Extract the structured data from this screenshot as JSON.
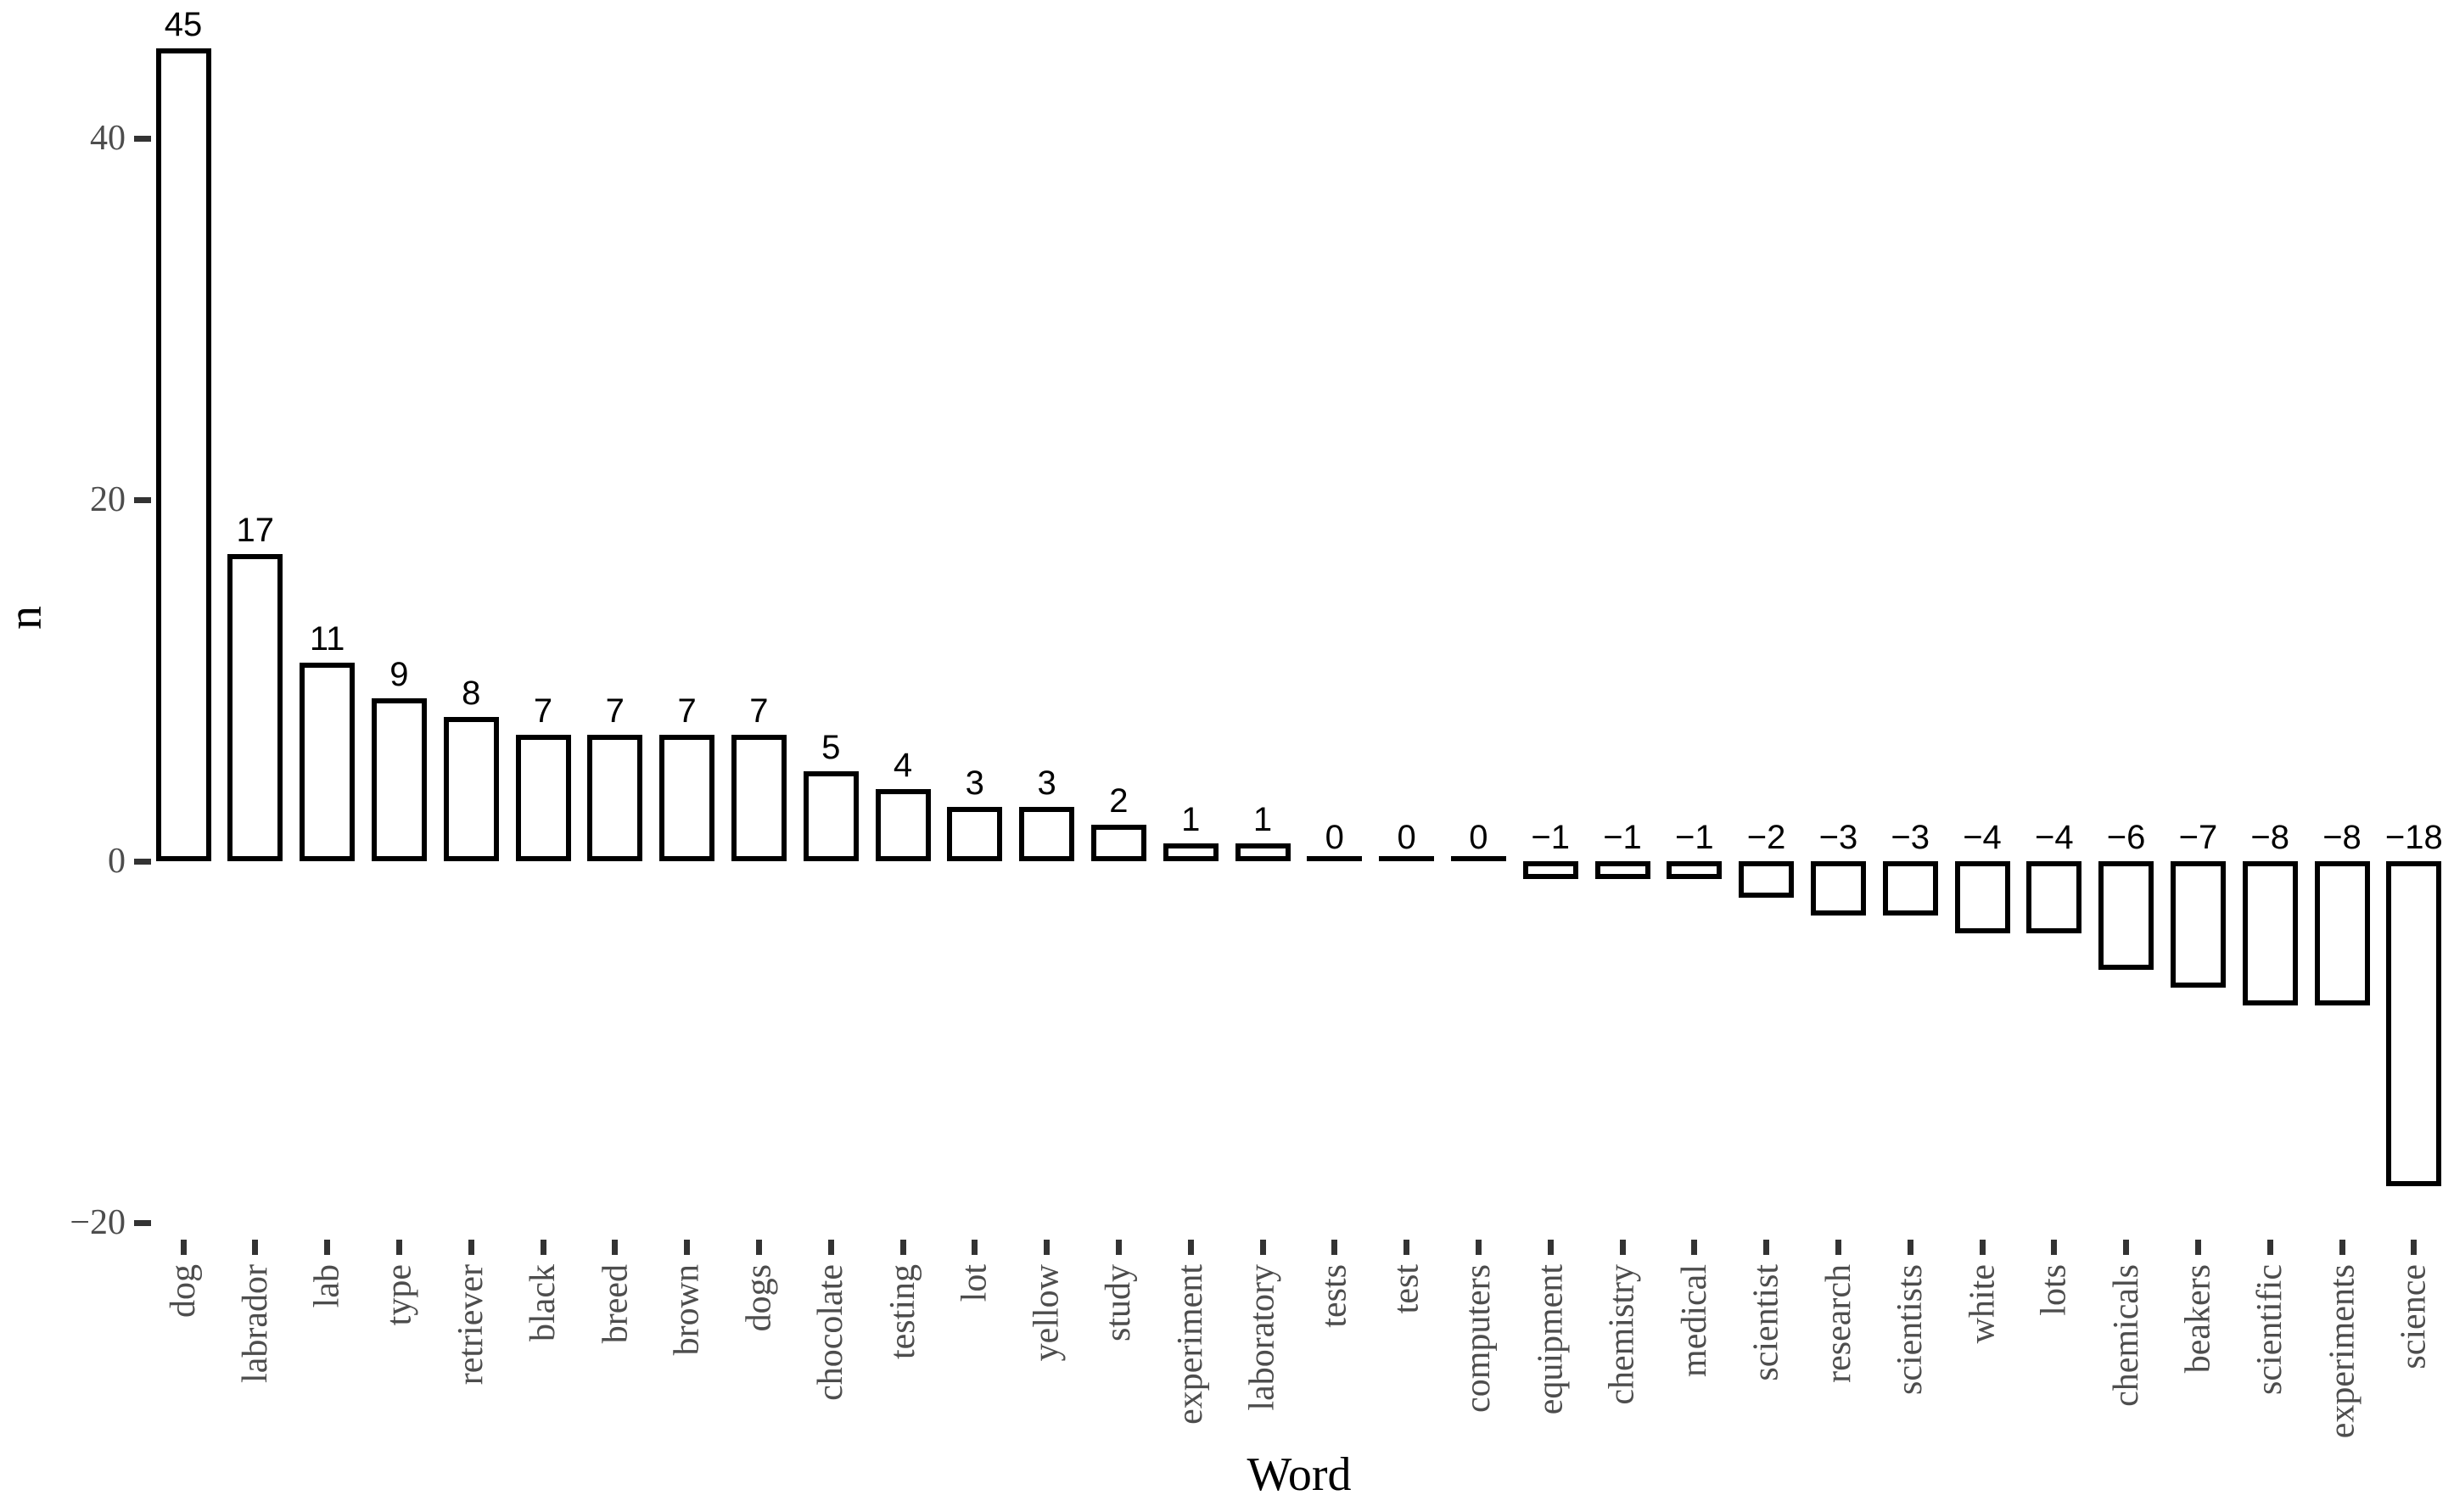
{
  "chart_data": {
    "type": "bar",
    "title": "",
    "xlabel": "Word",
    "ylabel": "n",
    "categories": [
      "dog",
      "labrador",
      "lab",
      "type",
      "retriever",
      "black",
      "breed",
      "brown",
      "dogs",
      "chocolate",
      "testing",
      "lot",
      "yellow",
      "study",
      "experiment",
      "laboratory",
      "tests",
      "test",
      "computers",
      "equipment",
      "chemistry",
      "medical",
      "scientist",
      "research",
      "scientists",
      "white",
      "lots",
      "chemicals",
      "beakers",
      "scientific",
      "experiments",
      "science"
    ],
    "values": [
      45,
      17,
      11,
      9,
      8,
      7,
      7,
      7,
      7,
      5,
      4,
      3,
      3,
      2,
      1,
      1,
      0,
      0,
      0,
      -1,
      -1,
      -1,
      -2,
      -3,
      -3,
      -4,
      -4,
      -6,
      -7,
      -8,
      -8,
      -18
    ],
    "bar_labels": [
      "45",
      "17",
      "11",
      "9",
      "8",
      "7",
      "7",
      "7",
      "7",
      "5",
      "4",
      "3",
      "3",
      "2",
      "1",
      "1",
      "0",
      "0",
      "0",
      "−1",
      "−1",
      "−1",
      "−2",
      "−3",
      "−3",
      "−4",
      "−4",
      "−6",
      "−7",
      "−8",
      "−8",
      "−18"
    ],
    "y_ticks": [
      {
        "label": "40",
        "value": 40
      },
      {
        "label": "20",
        "value": 20
      },
      {
        "label": "0",
        "value": 0
      },
      {
        "label": "−20",
        "value": -20
      }
    ],
    "ylim": [
      -21.2,
      48.2
    ],
    "grid": false,
    "legend": false,
    "colors": {
      "bar_fill": "#FFFFFF",
      "bar_stroke": "#000000",
      "axis_text": "#4D4D4D",
      "tick_mark": "#333333",
      "axis_title": "#000000",
      "background": "#FFFFFF"
    }
  }
}
